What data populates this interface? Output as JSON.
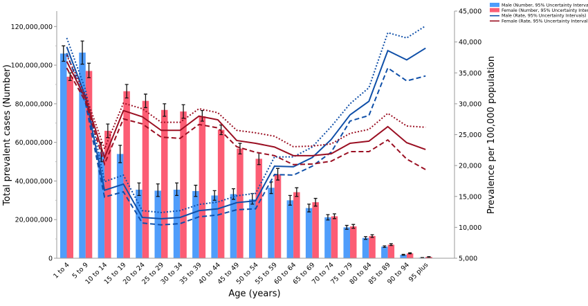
{
  "chart_data": {
    "type": "bar+line",
    "xlabel": "Age (years)",
    "ylabel": "Total prevalent cases (Number)",
    "y2label": "Prevalence per 100,000 population",
    "categories": [
      "1 to 4",
      "5 to 9",
      "10 to 14",
      "15 to 19",
      "20 to 24",
      "25 to 29",
      "30 to 34",
      "35 to 39",
      "40 to 44",
      "45 to 49",
      "50 to 54",
      "55 to 59",
      "60 to 64",
      "65 to 69",
      "70 to 74",
      "75 to 79",
      "80 to 84",
      "85 to 89",
      "90 to 94",
      "95 plus"
    ],
    "ylim": [
      0,
      128000000
    ],
    "y2lim": [
      5000,
      45000
    ],
    "yticks": [
      "0",
      "20,000,000",
      "40,000,000",
      "60,000,000",
      "80,000,000",
      "100,000,000",
      "120,000,000"
    ],
    "ytick_values": [
      0,
      20000000,
      40000000,
      60000000,
      80000000,
      100000000,
      120000000
    ],
    "y2ticks": [
      "5,000",
      "10,000",
      "15,000",
      "20,000",
      "25,000",
      "30,000",
      "35,000",
      "40,000",
      "45,000"
    ],
    "y2tick_values": [
      5000,
      10000,
      15000,
      20000,
      25000,
      30000,
      35000,
      40000,
      45000
    ],
    "legend_position": "top-right",
    "legend": [
      {
        "label": "Male (Number, 95% Uncertainty Intervals)",
        "kind": "bar",
        "color": "#4f9dfb"
      },
      {
        "label": "Female (Number, 95% Uncertainty Intervals)",
        "kind": "bar",
        "color": "#fc5d74"
      },
      {
        "label": "Male (Rate, 95% Uncertainty Intervals)",
        "kind": "line",
        "color": "#0f4fa8"
      },
      {
        "label": "Female (Rate, 95% Uncertainty Intervals)",
        "kind": "line",
        "color": "#9a0f22"
      }
    ],
    "bars": [
      {
        "name": "Male (Number, 95% Uncertainty Intervals)",
        "color": "#4f9dfb",
        "values": [
          106000000,
          106500000,
          55000000,
          54000000,
          35500000,
          35000000,
          35500000,
          34800000,
          32500000,
          33200000,
          30500000,
          36500000,
          30000000,
          26000000,
          21200000,
          16000000,
          10500000,
          6000000,
          1800000,
          300000
        ],
        "lower": [
          102000000,
          100500000,
          50000000,
          49500000,
          32500000,
          32000000,
          32500000,
          32000000,
          30000000,
          30500000,
          28000000,
          33500000,
          27500000,
          24000000,
          19800000,
          15000000,
          9800000,
          5600000,
          1600000,
          250000
        ],
        "upper": [
          110000000,
          112500000,
          60000000,
          58500000,
          39000000,
          38500000,
          39000000,
          37800000,
          35000000,
          36000000,
          33500000,
          39500000,
          32500000,
          28000000,
          22600000,
          17000000,
          11200000,
          6400000,
          2000000,
          350000
        ]
      },
      {
        "name": "Female (Number, 95% Uncertainty Intervals)",
        "color": "#fc5d74",
        "values": [
          94000000,
          97000000,
          66000000,
          86500000,
          81500000,
          76800000,
          76000000,
          73500000,
          66500000,
          56800000,
          51500000,
          43500000,
          34200000,
          29000000,
          21700000,
          16500000,
          11500000,
          7000000,
          2500000,
          700000
        ],
        "lower": [
          92000000,
          93500000,
          62500000,
          83000000,
          78000000,
          73500000,
          72500000,
          71000000,
          64000000,
          54000000,
          48500000,
          40500000,
          32000000,
          27000000,
          20500000,
          15500000,
          10800000,
          6600000,
          2300000,
          600000
        ],
        "upper": [
          96000000,
          101000000,
          69500000,
          90000000,
          85000000,
          80000000,
          79500000,
          76500000,
          69000000,
          59500000,
          54500000,
          46500000,
          36500000,
          31000000,
          23000000,
          17500000,
          12200000,
          7500000,
          2800000,
          800000
        ]
      }
    ],
    "lines": [
      {
        "name": "Male (Rate, 95% Uncertainty Intervals)",
        "color": "#0f4fa8",
        "values": [
          39200,
          31100,
          16000,
          17000,
          11600,
          11400,
          11600,
          12700,
          13000,
          14000,
          14300,
          19900,
          19800,
          21300,
          24200,
          28200,
          30400,
          38600,
          37100,
          39000
        ],
        "upper": [
          40650,
          32200,
          17400,
          18450,
          12700,
          12400,
          12700,
          13700,
          14100,
          15100,
          15500,
          21400,
          21400,
          23000,
          26300,
          30000,
          32600,
          41500,
          40650,
          42600
        ],
        "lower": [
          38200,
          30000,
          14900,
          15750,
          10700,
          10400,
          10600,
          11700,
          12000,
          12850,
          13000,
          18550,
          18450,
          19900,
          22150,
          27200,
          28100,
          35800,
          33700,
          34500
        ]
      },
      {
        "name": "Female (Rate, 95% Uncertainty Intervals)",
        "color": "#9a0f22",
        "values": [
          36850,
          30800,
          21300,
          28900,
          27900,
          25700,
          25700,
          28000,
          27400,
          24050,
          23600,
          23000,
          21600,
          21600,
          21900,
          23600,
          23950,
          26300,
          23700,
          22600
        ],
        "upper": [
          37850,
          31350,
          22700,
          30100,
          29200,
          27000,
          27000,
          29200,
          28550,
          25700,
          25300,
          24750,
          23050,
          23150,
          23500,
          25200,
          25850,
          28450,
          26400,
          26200
        ],
        "lower": [
          35800,
          30300,
          20250,
          27550,
          26750,
          24600,
          24400,
          26650,
          26100,
          23050,
          22150,
          21600,
          20150,
          20250,
          20700,
          22250,
          22250,
          24150,
          21050,
          19350
        ]
      }
    ]
  }
}
